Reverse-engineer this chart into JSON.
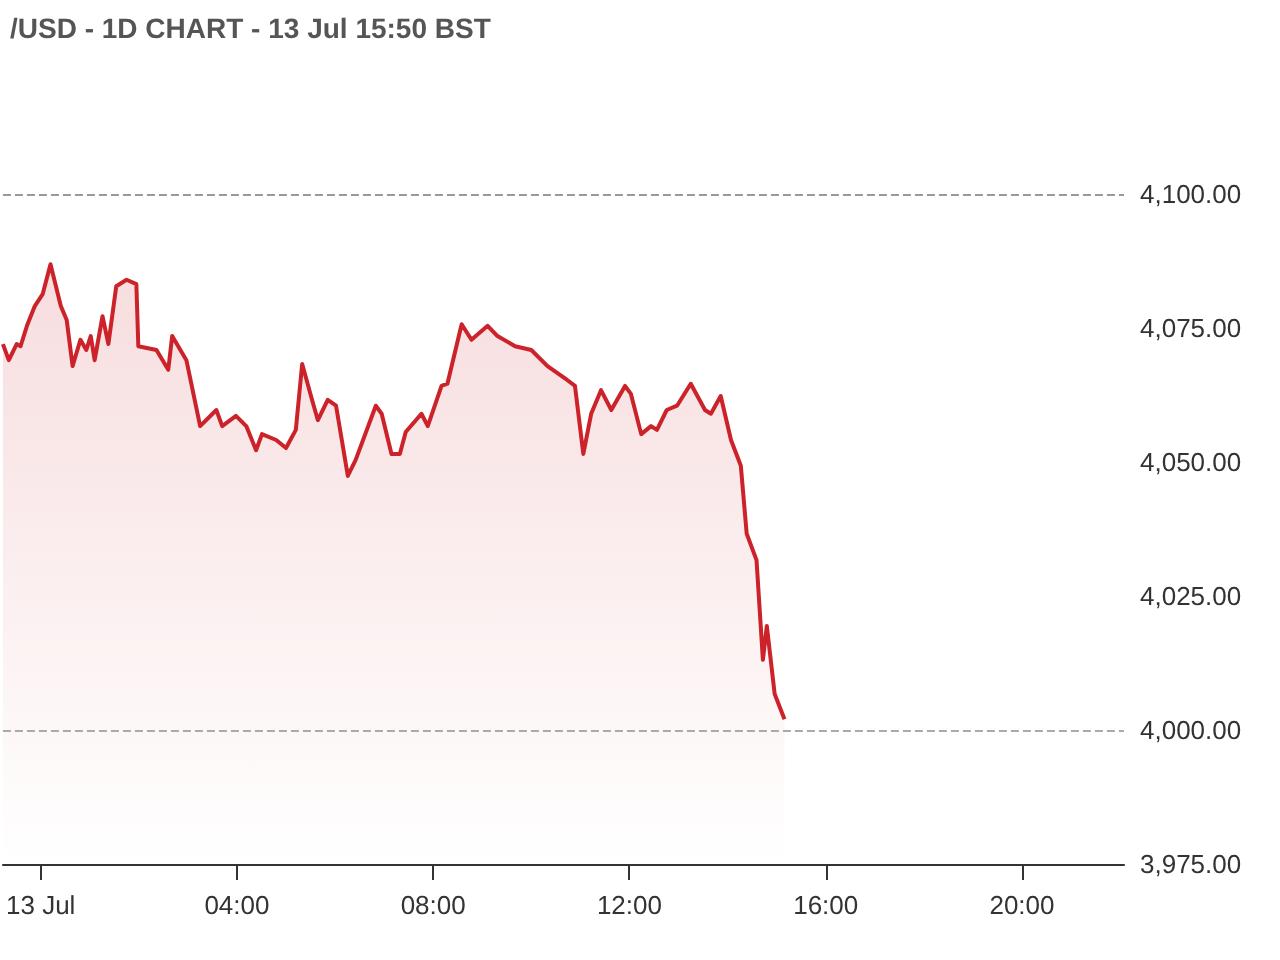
{
  "chart_data": {
    "type": "area",
    "title": "/USD - 1D CHART - 13 Jul 15:50 BST",
    "x": [
      -0.77,
      -0.65,
      -0.49,
      -0.41,
      -0.28,
      -0.12,
      0.04,
      0.2,
      0.41,
      0.53,
      0.65,
      0.81,
      0.93,
      1.02,
      1.1,
      1.26,
      1.38,
      1.54,
      1.75,
      1.95,
      1.99,
      2.36,
      2.6,
      2.68,
      2.97,
      3.25,
      3.58,
      3.7,
      3.98,
      4.19,
      4.39,
      4.51,
      4.8,
      5.0,
      5.2,
      5.33,
      5.53,
      5.65,
      5.85,
      6.02,
      6.26,
      6.42,
      6.83,
      6.95,
      7.15,
      7.32,
      7.44,
      7.76,
      7.89,
      8.17,
      8.29,
      8.58,
      8.78,
      9.11,
      9.31,
      9.67,
      10.0,
      10.33,
      10.73,
      10.89,
      11.06,
      11.22,
      11.42,
      11.63,
      11.91,
      12.03,
      12.24,
      12.44,
      12.56,
      12.76,
      12.97,
      13.25,
      13.54,
      13.66,
      13.86,
      14.07,
      14.27,
      14.39,
      14.59,
      14.72,
      14.8,
      14.96,
      15.16
    ],
    "series": [
      {
        "color": "#cc2229",
        "values": [
          4072.0,
          4069.0,
          4072.0,
          4071.6,
          4075.4,
          4079.1,
          4081.3,
          4086.9,
          4079.1,
          4076.5,
          4067.9,
          4072.8,
          4070.9,
          4073.5,
          4069.0,
          4077.2,
          4072.0,
          4082.8,
          4084.0,
          4083.2,
          4071.6,
          4070.9,
          4067.2,
          4073.5,
          4069.0,
          4056.7,
          4059.7,
          4056.7,
          4058.6,
          4056.7,
          4052.2,
          4055.2,
          4054.1,
          4052.6,
          4056.0,
          4068.3,
          4061.6,
          4057.8,
          4061.6,
          4060.5,
          4047.4,
          4050.4,
          4060.5,
          4059.0,
          4051.5,
          4051.5,
          4055.6,
          4059.0,
          4056.7,
          4064.2,
          4064.6,
          4075.7,
          4072.8,
          4075.4,
          4073.5,
          4071.6,
          4070.9,
          4067.9,
          4065.3,
          4064.2,
          4051.5,
          4059.0,
          4063.4,
          4059.7,
          4064.2,
          4062.7,
          4055.2,
          4056.7,
          4056.0,
          4059.7,
          4060.5,
          4064.6,
          4059.7,
          4059.0,
          4062.3,
          4054.1,
          4049.3,
          4036.6,
          4031.7,
          4013.1,
          4019.4,
          4006.7,
          4002.0
        ]
      }
    ],
    "xlim": [
      -0.77,
      22.08
    ],
    "xticks": [
      {
        "value": 0,
        "label": "13 Jul"
      },
      {
        "value": 4,
        "label": "04:00"
      },
      {
        "value": 8,
        "label": "08:00"
      },
      {
        "value": 12,
        "label": "12:00"
      },
      {
        "value": 16,
        "label": "16:00"
      },
      {
        "value": 20,
        "label": "20:00"
      }
    ],
    "ylim": [
      3975,
      4100
    ],
    "yticks": [
      {
        "value": 3975,
        "label": "3,975.00"
      },
      {
        "value": 4000,
        "label": "4,000.00"
      },
      {
        "value": 4025,
        "label": "4,025.00"
      },
      {
        "value": 4050,
        "label": "4,050.00"
      },
      {
        "value": 4075,
        "label": "4,075.00"
      },
      {
        "value": 4100,
        "label": "4,100.00"
      }
    ],
    "ref_lines": [
      {
        "axis": "y",
        "value": 4100,
        "color": "#999999",
        "line_style": "dashed"
      },
      {
        "axis": "y",
        "value": 4000,
        "color": "#aaaaaa",
        "line_style": "dashed"
      }
    ],
    "grid": false,
    "marker": "none"
  }
}
